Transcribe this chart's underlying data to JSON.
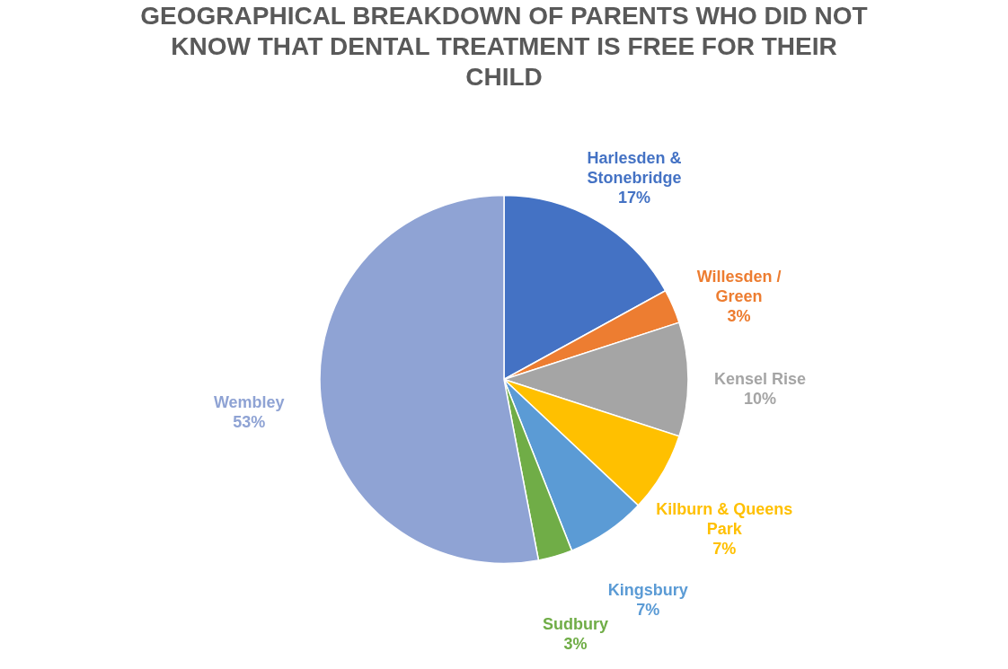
{
  "chart_data": {
    "type": "pie",
    "title": "GEOGRAPHICAL BREAKDOWN OF PARENTS WHO DID NOT KNOW THAT DENTAL TREATMENT IS FREE FOR THEIR CHILD",
    "categories": [
      "Harlesden & Stonebridge",
      "Willesden / Green",
      "Kensel Rise",
      "Kilburn & Queens Park",
      "Kingsbury",
      "Sudbury",
      "Wembley"
    ],
    "values": [
      17,
      3,
      10,
      7,
      7,
      3,
      53
    ],
    "value_labels": [
      "17%",
      "3%",
      "10%",
      "7%",
      "7%",
      "3%",
      "53%"
    ],
    "colors": [
      "#4472c4",
      "#ed7d31",
      "#a5a5a5",
      "#ffc000",
      "#5b9bd5",
      "#70ad47",
      "#8fa3d4"
    ],
    "legend": false
  }
}
